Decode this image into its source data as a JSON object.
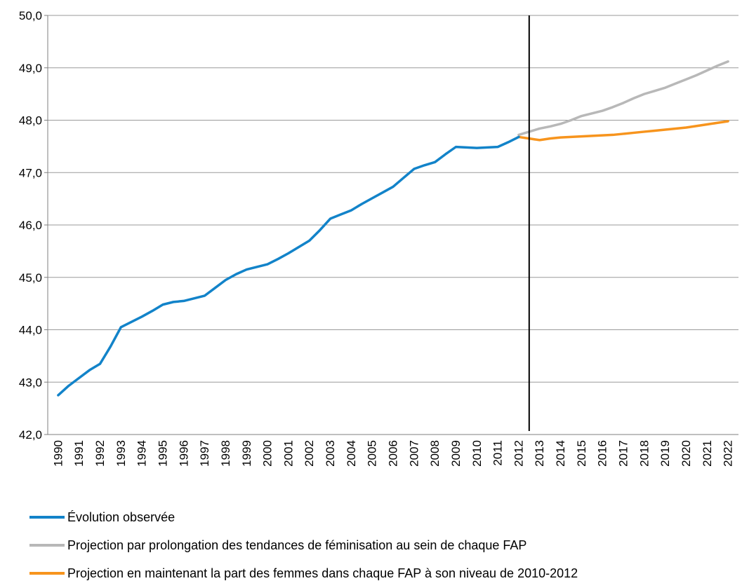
{
  "chart_data": {
    "type": "line",
    "title": "",
    "xlabel": "",
    "ylabel": "",
    "x_categories": [
      "1990",
      "1991",
      "1992",
      "1993",
      "1994",
      "1995",
      "1996",
      "1997",
      "1998",
      "1999",
      "2000",
      "2001",
      "2002",
      "2003",
      "2004",
      "2005",
      "2006",
      "2007",
      "2008",
      "2009",
      "2010",
      "2011",
      "2012",
      "2013",
      "2014",
      "2015",
      "2016",
      "2017",
      "2018",
      "2019",
      "2020",
      "2021",
      "2022"
    ],
    "ylim": [
      42.0,
      50.0
    ],
    "y_ticks": [
      "42,0",
      "43,0",
      "44,0",
      "45,0",
      "46,0",
      "47,0",
      "48,0",
      "49,0",
      "50,0"
    ],
    "grid": true,
    "vertical_marker_between": [
      "2012",
      "2013"
    ],
    "legend_position": "bottom",
    "series": [
      {
        "name": "Évolution observée",
        "color": "#1283c9",
        "points": [
          {
            "x": 1990.0,
            "y": 42.75
          },
          {
            "x": 1990.5,
            "y": 42.93
          },
          {
            "x": 1991.0,
            "y": 43.08
          },
          {
            "x": 1991.5,
            "y": 43.23
          },
          {
            "x": 1992.0,
            "y": 43.35
          },
          {
            "x": 1992.5,
            "y": 43.68
          },
          {
            "x": 1993.0,
            "y": 44.05
          },
          {
            "x": 1993.5,
            "y": 44.15
          },
          {
            "x": 1994.0,
            "y": 44.25
          },
          {
            "x": 1994.5,
            "y": 44.36
          },
          {
            "x": 1995.0,
            "y": 44.48
          },
          {
            "x": 1995.5,
            "y": 44.53
          },
          {
            "x": 1996.0,
            "y": 44.55
          },
          {
            "x": 1996.5,
            "y": 44.6
          },
          {
            "x": 1997.0,
            "y": 44.65
          },
          {
            "x": 1997.5,
            "y": 44.8
          },
          {
            "x": 1998.0,
            "y": 44.95
          },
          {
            "x": 1998.5,
            "y": 45.06
          },
          {
            "x": 1999.0,
            "y": 45.15
          },
          {
            "x": 1999.5,
            "y": 45.2
          },
          {
            "x": 2000.0,
            "y": 45.25
          },
          {
            "x": 2000.5,
            "y": 45.35
          },
          {
            "x": 2001.0,
            "y": 45.46
          },
          {
            "x": 2001.5,
            "y": 45.58
          },
          {
            "x": 2002.0,
            "y": 45.7
          },
          {
            "x": 2002.5,
            "y": 45.9
          },
          {
            "x": 2003.0,
            "y": 46.12
          },
          {
            "x": 2003.5,
            "y": 46.2
          },
          {
            "x": 2004.0,
            "y": 46.28
          },
          {
            "x": 2004.5,
            "y": 46.4
          },
          {
            "x": 2005.0,
            "y": 46.51
          },
          {
            "x": 2005.5,
            "y": 46.62
          },
          {
            "x": 2006.0,
            "y": 46.73
          },
          {
            "x": 2006.5,
            "y": 46.9
          },
          {
            "x": 2007.0,
            "y": 47.07
          },
          {
            "x": 2007.5,
            "y": 47.14
          },
          {
            "x": 2008.0,
            "y": 47.2
          },
          {
            "x": 2008.5,
            "y": 47.35
          },
          {
            "x": 2009.0,
            "y": 47.49
          },
          {
            "x": 2009.5,
            "y": 47.48
          },
          {
            "x": 2010.0,
            "y": 47.47
          },
          {
            "x": 2010.5,
            "y": 47.48
          },
          {
            "x": 2011.0,
            "y": 47.49
          },
          {
            "x": 2011.5,
            "y": 47.58
          },
          {
            "x": 2012.0,
            "y": 47.68
          }
        ]
      },
      {
        "name": "Projection par prolongation des tendances de féminisation au sein de chaque FAP",
        "color": "#b8b8b8",
        "points": [
          {
            "x": 2012.0,
            "y": 47.72
          },
          {
            "x": 2012.5,
            "y": 47.78
          },
          {
            "x": 2013.0,
            "y": 47.84
          },
          {
            "x": 2013.5,
            "y": 47.88
          },
          {
            "x": 2014.0,
            "y": 47.93
          },
          {
            "x": 2014.5,
            "y": 48.0
          },
          {
            "x": 2015.0,
            "y": 48.08
          },
          {
            "x": 2015.5,
            "y": 48.13
          },
          {
            "x": 2016.0,
            "y": 48.18
          },
          {
            "x": 2016.5,
            "y": 48.25
          },
          {
            "x": 2017.0,
            "y": 48.33
          },
          {
            "x": 2017.5,
            "y": 48.42
          },
          {
            "x": 2018.0,
            "y": 48.5
          },
          {
            "x": 2018.5,
            "y": 48.56
          },
          {
            "x": 2019.0,
            "y": 48.62
          },
          {
            "x": 2019.5,
            "y": 48.7
          },
          {
            "x": 2020.0,
            "y": 48.78
          },
          {
            "x": 2020.5,
            "y": 48.86
          },
          {
            "x": 2021.0,
            "y": 48.95
          },
          {
            "x": 2021.5,
            "y": 49.04
          },
          {
            "x": 2022.0,
            "y": 49.12
          }
        ]
      },
      {
        "name": "Projection en maintenant la part des femmes dans chaque FAP à son niveau de 2010-2012",
        "color": "#f7941d",
        "points": [
          {
            "x": 2012.0,
            "y": 47.68
          },
          {
            "x": 2012.5,
            "y": 47.65
          },
          {
            "x": 2013.0,
            "y": 47.62
          },
          {
            "x": 2013.5,
            "y": 47.65
          },
          {
            "x": 2014.0,
            "y": 47.67
          },
          {
            "x": 2014.5,
            "y": 47.68
          },
          {
            "x": 2015.0,
            "y": 47.69
          },
          {
            "x": 2015.5,
            "y": 47.7
          },
          {
            "x": 2016.0,
            "y": 47.71
          },
          {
            "x": 2016.5,
            "y": 47.72
          },
          {
            "x": 2017.0,
            "y": 47.74
          },
          {
            "x": 2017.5,
            "y": 47.76
          },
          {
            "x": 2018.0,
            "y": 47.78
          },
          {
            "x": 2018.5,
            "y": 47.8
          },
          {
            "x": 2019.0,
            "y": 47.82
          },
          {
            "x": 2019.5,
            "y": 47.84
          },
          {
            "x": 2020.0,
            "y": 47.86
          },
          {
            "x": 2020.5,
            "y": 47.89
          },
          {
            "x": 2021.0,
            "y": 47.92
          },
          {
            "x": 2021.5,
            "y": 47.95
          },
          {
            "x": 2022.0,
            "y": 47.98
          }
        ]
      }
    ]
  }
}
